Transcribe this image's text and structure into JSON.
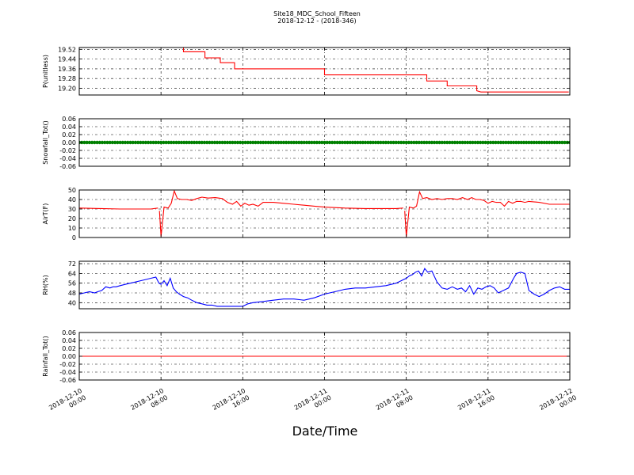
{
  "title_line1": "Site18_MDC_School_Fifteen",
  "title_line2": "2018-12-12 - (2018-346)",
  "xlabel": "Date/Time",
  "x_ticks": [
    {
      "l1": "2018-12-10",
      "l2": "00:00"
    },
    {
      "l1": "2018-12-10",
      "l2": "08:00"
    },
    {
      "l1": "2018-12-10",
      "l2": "16:00"
    },
    {
      "l1": "2018-12-11",
      "l2": "00:00"
    },
    {
      "l1": "2018-12-11",
      "l2": "08:00"
    },
    {
      "l1": "2018-12-11",
      "l2": "16:00"
    },
    {
      "l1": "2018-12-12",
      "l2": "00:00"
    }
  ],
  "colors": {
    "red": "#ff0000",
    "green": "#008000",
    "blue": "#0000ff"
  },
  "chart_data": [
    {
      "type": "line",
      "ylabel": "P(unitless)",
      "ylim": [
        19.145,
        19.535
      ],
      "yticks": [
        "19.52",
        "19.44",
        "19.36",
        "19.28",
        "19.20"
      ],
      "ytick_values": [
        19.52,
        19.44,
        19.36,
        19.28,
        19.2
      ],
      "grid": true,
      "color": "#ff0000",
      "x_hours": [
        10.2,
        10.2,
        12.3,
        12.3,
        13.8,
        13.8,
        15.2,
        15.2,
        24.0,
        24.0,
        34.0,
        34.0,
        36.0,
        36.0,
        38.9,
        38.9,
        39.3,
        39.3,
        47.9
      ],
      "values": [
        19.54,
        19.5,
        19.5,
        19.45,
        19.45,
        19.41,
        19.41,
        19.36,
        19.36,
        19.31,
        19.31,
        19.26,
        19.26,
        19.22,
        19.22,
        19.18,
        19.17,
        19.17,
        19.17
      ]
    },
    {
      "type": "scatter",
      "ylabel": "Snowfall_Tot()",
      "ylim": [
        -0.06,
        0.06
      ],
      "yticks": [
        "0.06",
        "0.04",
        "0.02",
        "0.00",
        "-0.02",
        "-0.04",
        "-0.06"
      ],
      "ytick_values": [
        0.06,
        0.04,
        0.02,
        0.0,
        -0.02,
        -0.04,
        -0.06
      ],
      "grid": true,
      "color": "#008000",
      "x_range_hours": [
        0,
        48
      ],
      "constant_value": 0.0
    },
    {
      "type": "line",
      "ylabel": "AirT(F)",
      "ylim": [
        0,
        50
      ],
      "yticks": [
        "50",
        "40",
        "30",
        "20",
        "10",
        "0"
      ],
      "ytick_values": [
        50,
        40,
        30,
        20,
        10,
        0
      ],
      "grid": true,
      "color": "#ff0000",
      "x_hours": [
        0,
        2,
        4,
        6,
        7,
        7.7,
        7.85,
        8.0,
        8.3,
        8.7,
        9.0,
        9.3,
        9.6,
        10.0,
        10.5,
        11.0,
        11.5,
        12.0,
        12.6,
        13.3,
        14.0,
        14.5,
        15.0,
        15.4,
        15.8,
        16.2,
        16.6,
        17.0,
        17.5,
        18.0,
        19.0,
        20.0,
        21.0,
        22.0,
        23.0,
        24.0,
        26.0,
        28.0,
        30.0,
        31.0,
        31.7,
        31.85,
        32.0,
        32.3,
        32.7,
        33.0,
        33.3,
        33.6,
        34.0,
        34.5,
        35.0,
        35.5,
        36.0,
        36.5,
        37.0,
        37.5,
        38.0,
        38.4,
        38.8,
        39.2,
        39.6,
        40.0,
        40.4,
        40.8,
        41.2,
        41.6,
        42.0,
        42.4,
        42.8,
        43.2,
        43.6,
        44.0,
        45.0,
        46.0,
        47.0,
        48.0
      ],
      "values": [
        31,
        30.5,
        30,
        30,
        30,
        31,
        28,
        1,
        32,
        31,
        36,
        49,
        41,
        40,
        40,
        39,
        41,
        42.5,
        41.5,
        42,
        41,
        37,
        35,
        38,
        33,
        36,
        34,
        35,
        33,
        37,
        37,
        36,
        35,
        34,
        33,
        32,
        31,
        30.5,
        30.5,
        30.5,
        31,
        28,
        1,
        32,
        31,
        33,
        48,
        41,
        42,
        40,
        41,
        40,
        41,
        41,
        40,
        42,
        40,
        42,
        40,
        40,
        39,
        36,
        38,
        37,
        37,
        33,
        38,
        36,
        38,
        38,
        37,
        38,
        37,
        35,
        35,
        35
      ],
      "breaks_after": [
        5,
        40
      ]
    },
    {
      "type": "line",
      "ylabel": "RH(%)",
      "ylim": [
        35,
        74
      ],
      "yticks": [
        "72",
        "64",
        "56",
        "48",
        "40"
      ],
      "ytick_values": [
        72,
        64,
        56,
        48,
        40
      ],
      "grid": true,
      "color": "#0000ff",
      "x_hours": [
        0,
        0.5,
        1.0,
        1.5,
        1.8,
        2.2,
        2.6,
        3.0,
        3.3,
        3.6,
        4.0,
        4.5,
        5.0,
        5.5,
        6.0,
        6.5,
        7.0,
        7.5,
        7.8,
        8.0,
        8.3,
        8.6,
        8.9,
        9.2,
        9.5,
        9.8,
        10.2,
        10.6,
        11.0,
        11.5,
        12.0,
        12.5,
        13.0,
        13.5,
        14.0,
        14.5,
        15.0,
        15.5,
        16.0,
        16.5,
        17.0,
        18.0,
        19.0,
        20.0,
        21.0,
        22.0,
        23.0,
        24.0,
        25.0,
        26.0,
        27.0,
        28.0,
        29.0,
        30.0,
        31.0,
        31.5,
        32.0,
        32.3,
        32.6,
        32.9,
        33.2,
        33.5,
        33.8,
        34.1,
        34.5,
        35.0,
        35.5,
        36.0,
        36.5,
        37.0,
        37.4,
        37.8,
        38.2,
        38.6,
        39.0,
        39.4,
        39.8,
        40.2,
        40.6,
        41.0,
        41.5,
        42.0,
        42.5,
        42.8,
        43.2,
        43.6,
        44.0,
        44.5,
        45.0,
        45.5,
        46.0,
        46.5,
        47.0,
        47.5,
        48.0
      ],
      "values": [
        47,
        48,
        49,
        48,
        49,
        50,
        53,
        52,
        53,
        53,
        54,
        55,
        56,
        57,
        58,
        59,
        60,
        61,
        56,
        55,
        58,
        54,
        60,
        52,
        49,
        47,
        45,
        44,
        42,
        40,
        39,
        38,
        38,
        37,
        37,
        37,
        37,
        37,
        37,
        39,
        40,
        41,
        42,
        43,
        43,
        42,
        44,
        47,
        49,
        51,
        52,
        52,
        53,
        54,
        56,
        58,
        60,
        62,
        63,
        65,
        66,
        62,
        68,
        65,
        66,
        57,
        52,
        51,
        53,
        51,
        52,
        49,
        54,
        47,
        52,
        51,
        53,
        54,
        52,
        48,
        50,
        52,
        60,
        64,
        65,
        64,
        50,
        47,
        45,
        47,
        50,
        52,
        53,
        51,
        51
      ]
    },
    {
      "type": "line",
      "ylabel": "Rainfall_Tot()",
      "ylim": [
        -0.06,
        0.06
      ],
      "yticks": [
        "0.06",
        "0.04",
        "0.02",
        "0.00",
        "-0.02",
        "-0.04",
        "-0.06"
      ],
      "ytick_values": [
        0.06,
        0.04,
        0.02,
        0.0,
        -0.02,
        -0.04,
        -0.06
      ],
      "grid": true,
      "color": "#ff0000",
      "x_hours": [
        0,
        48
      ],
      "values": [
        0.0,
        0.0
      ]
    }
  ]
}
